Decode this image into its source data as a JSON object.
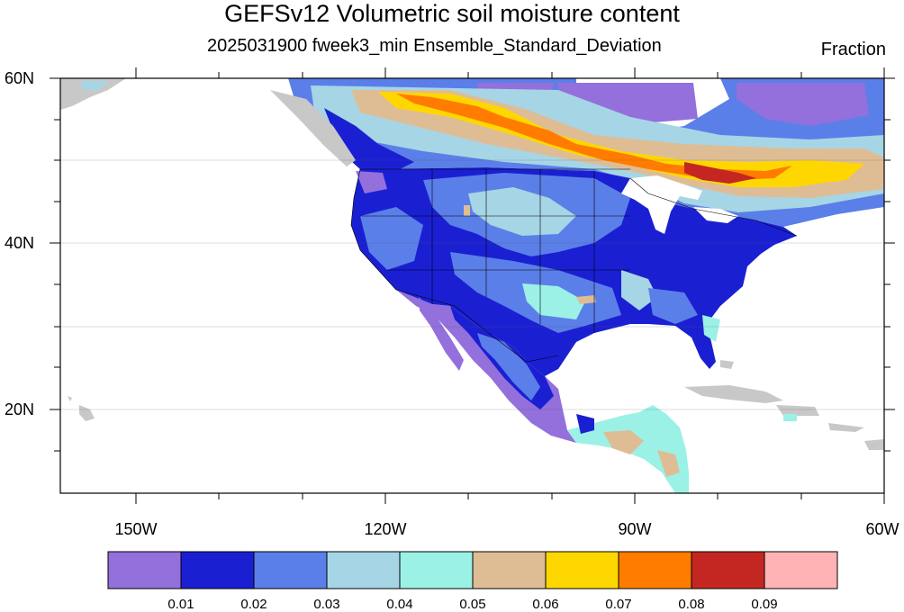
{
  "title": "GEFSv12 Volumetric soil moisture content",
  "subtitle": "2025031900 fweek3_min Ensemble_Standard_Deviation",
  "units": "Fraction",
  "map": {
    "lat_range": [
      10,
      60
    ],
    "lon_range": [
      -160,
      -60
    ],
    "lat_ticks": [
      "20N",
      "40N",
      "60N"
    ],
    "lon_ticks": [
      "150W",
      "120W",
      "90W",
      "60W"
    ]
  },
  "colorbar": {
    "levels": [
      "0.01",
      "0.02",
      "0.03",
      "0.04",
      "0.05",
      "0.06",
      "0.07",
      "0.08",
      "0.09"
    ],
    "colors": [
      "#9370db",
      "#1a20d2",
      "#5b7fe8",
      "#a6d5e6",
      "#9bf1e6",
      "#debd95",
      "#ffd700",
      "#ff7c00",
      "#c42721",
      "#ffb3b4"
    ]
  }
}
